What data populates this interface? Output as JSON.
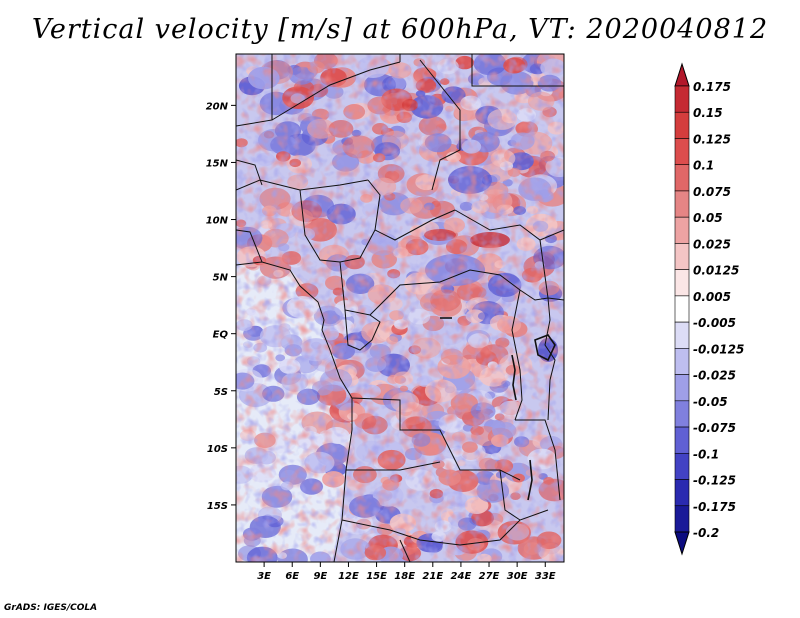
{
  "title": "Vertical velocity [m/s] at 600hPa, VT: 2020040812",
  "credit": "GrADS: IGES/COLA",
  "map": {
    "lat_labels": [
      "20N",
      "15N",
      "10N",
      "5N",
      "EQ",
      "5S",
      "10S",
      "15S"
    ],
    "lat_values": [
      20,
      15,
      10,
      5,
      0,
      -5,
      -10,
      -15
    ],
    "lon_labels": [
      "3E",
      "6E",
      "9E",
      "12E",
      "15E",
      "18E",
      "21E",
      "24E",
      "27E",
      "30E",
      "33E"
    ],
    "lon_values": [
      3,
      6,
      9,
      12,
      15,
      18,
      21,
      24,
      27,
      30,
      33
    ],
    "lon_range": [
      0,
      35
    ],
    "lat_range": [
      -20,
      24.5
    ]
  },
  "colorbar": {
    "labels": [
      "0.175",
      "0.15",
      "0.125",
      "0.1",
      "0.075",
      "0.05",
      "0.025",
      "0.0125",
      "0.005",
      "-0.005",
      "-0.0125",
      "-0.025",
      "-0.05",
      "-0.075",
      "-0.1",
      "-0.125",
      "-0.175",
      "-0.2"
    ],
    "colors": [
      "#b2182b",
      "#c52a33",
      "#d43d3d",
      "#dc4d4d",
      "#e06767",
      "#e58585",
      "#eda3a3",
      "#f4c5c5",
      "#fbe6e6",
      "#ffffff",
      "#dcdcf6",
      "#bebef0",
      "#9f9fe8",
      "#8080de",
      "#6060d4",
      "#4242c4",
      "#2a2ab0",
      "#1a1a98",
      "#0c0c80"
    ]
  },
  "features": {
    "ocean_color": "#e6ebf8",
    "land_red": "#e47373",
    "land_blue": "#7a7ad8"
  }
}
